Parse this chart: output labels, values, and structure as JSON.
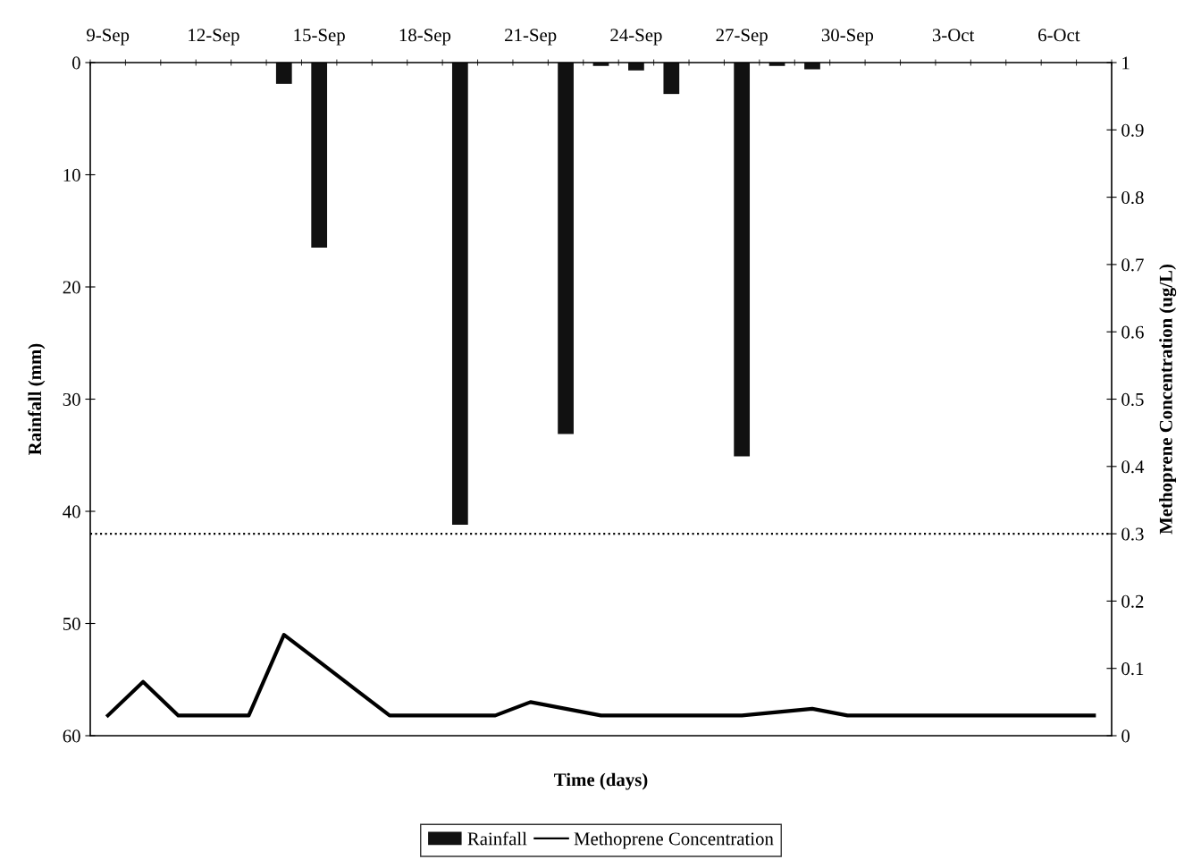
{
  "chart_data": {
    "type": "bar",
    "xlabel": "Time (days)",
    "ylabel": "Rainfall (mm)",
    "y2label": "Methoprene Concentration (ug/L)",
    "categories": [
      "9-Sep",
      null,
      null,
      "12-Sep",
      null,
      null,
      "15-Sep",
      null,
      null,
      "18-Sep",
      null,
      null,
      "21-Sep",
      null,
      null,
      "24-Sep",
      null,
      null,
      "27-Sep",
      null,
      null,
      "30-Sep",
      null,
      null,
      "3-Oct",
      null,
      null,
      "6-Oct",
      null
    ],
    "series": [
      {
        "name": "Rainfall",
        "color": "#111111",
        "values": [
          0,
          0,
          0,
          0,
          0,
          1.9,
          16.5,
          0,
          0,
          0,
          41.2,
          0,
          0,
          33.1,
          0.3,
          0.7,
          2.8,
          0,
          35.1,
          0.3,
          0.6,
          0,
          0,
          0,
          0,
          0,
          0,
          0,
          0
        ]
      },
      {
        "name": "Methoprene Concentration",
        "type": "line",
        "axis": "y2",
        "color": "#000000",
        "values": [
          0.03,
          0.08,
          0.03,
          0.03,
          0.03,
          0.15,
          0.11,
          0.07,
          0.03,
          0.03,
          0.03,
          0.03,
          0.05,
          0.04,
          0.03,
          0.03,
          0.03,
          0.03,
          0.03,
          0.035,
          0.04,
          0.03,
          0.03,
          0.03,
          0.03,
          0.03,
          0.03,
          0.03,
          0.03
        ]
      }
    ],
    "ylim": [
      60,
      0
    ],
    "yticks": [
      0,
      10,
      20,
      30,
      40,
      50,
      60
    ],
    "y2lim": [
      0,
      1
    ],
    "y2ticks": [
      0,
      0.1,
      0.2,
      0.3,
      0.4,
      0.5,
      0.6,
      0.7,
      0.8,
      0.9,
      1
    ],
    "ref_lines": [
      {
        "axis": "y2",
        "value": 0.3,
        "color": "#000000",
        "line_style": "dotted"
      }
    ],
    "legend": "bottom",
    "grid": false
  }
}
